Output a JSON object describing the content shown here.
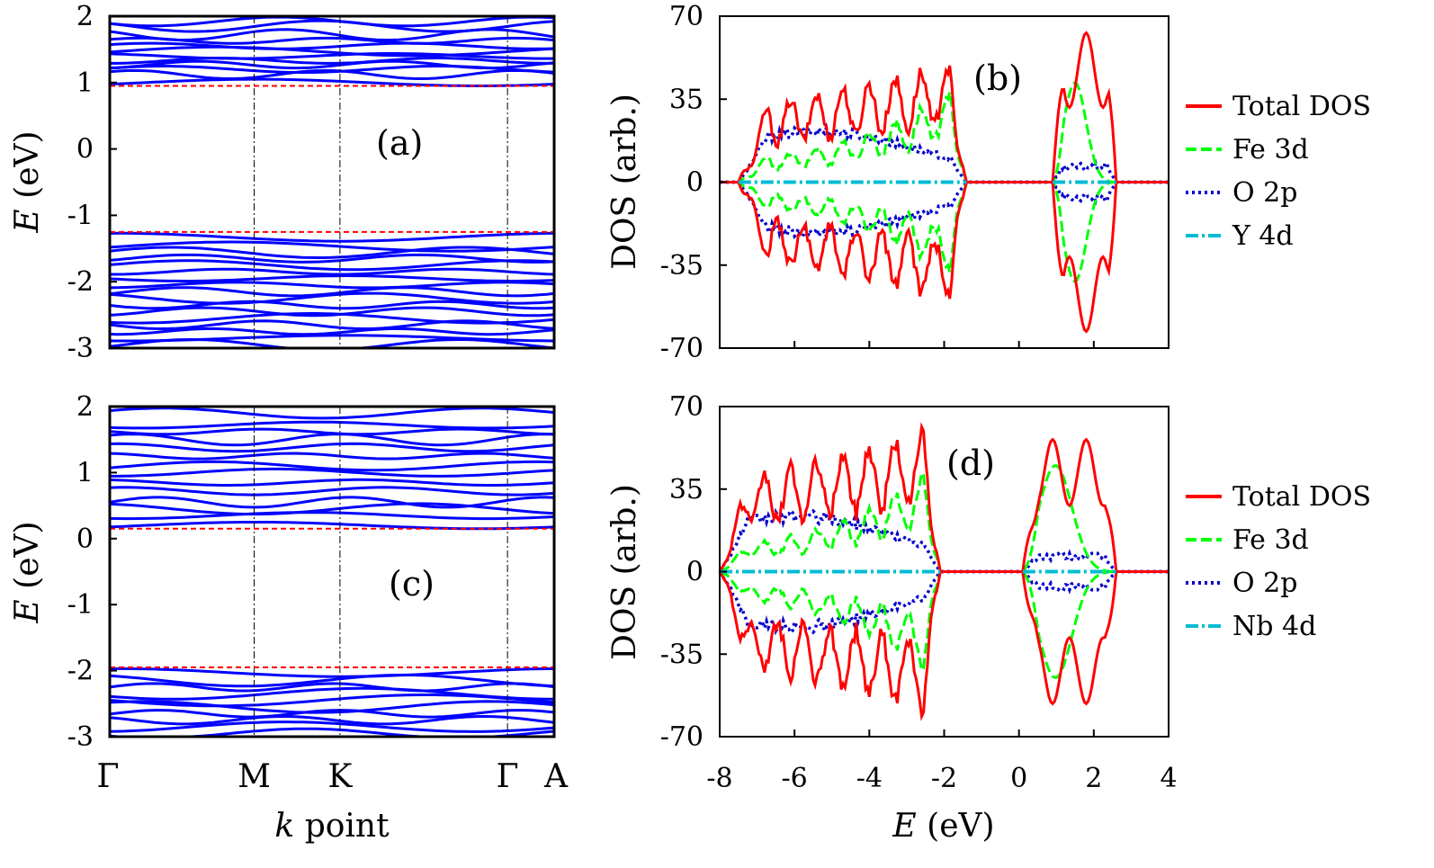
{
  "colors": {
    "bands": "#0000ff",
    "gap_edge": "#ff0000",
    "sym_lines": "#000000",
    "total_dos": "#ff0000",
    "fe_3d": "#00ff00",
    "o_2p": "#0000cc",
    "dopant_4d": "#00bcd4"
  },
  "chart_data": [
    {
      "id": "a",
      "type": "line",
      "label": "(a)",
      "ylabel_italic": "E",
      "ylabel_rest": "(eV)",
      "ylim": [
        -3,
        2
      ],
      "yticks": [
        "2",
        "1",
        "0",
        "-1",
        "-2",
        "-3"
      ],
      "kpoints": [
        "Γ",
        "M",
        "K",
        "Γ",
        "A"
      ],
      "cbm": 0.95,
      "vbm": -1.25,
      "cb_levels": [
        1.0,
        1.12,
        1.2,
        1.27,
        1.33,
        1.4,
        1.47,
        1.55,
        1.63,
        1.72,
        1.85,
        1.92
      ],
      "vb_levels": [
        -1.38,
        -1.47,
        -1.56,
        -1.65,
        -1.75,
        -1.85,
        -1.95,
        -2.05,
        -2.15,
        -2.25,
        -2.35,
        -2.45,
        -2.55,
        -2.65,
        -2.75,
        -2.85,
        -2.95
      ],
      "grid": false
    },
    {
      "id": "b",
      "type": "line",
      "label": "(b)",
      "ylabel": "DOS (arb.)",
      "xlim": [
        -8,
        4
      ],
      "ylim": [
        -70,
        70
      ],
      "yticks": [
        "70",
        "35",
        "0",
        "-35",
        "-70"
      ],
      "valence_band": [
        -7.5,
        -1.4
      ],
      "conduction_band": [
        0.9,
        2.6
      ],
      "peaks": {
        "total": 50,
        "fe_3d": 42,
        "o_2p": 30,
        "total_cb": 63
      },
      "legend": [
        "Total DOS",
        "Fe 3d",
        "O 2p",
        "Y 4d"
      ],
      "grid": false
    },
    {
      "id": "c",
      "type": "line",
      "label": "(c)",
      "ylabel_italic": "E",
      "ylabel_rest": "(eV)",
      "xlabel_italic": "k",
      "xlabel_rest": "point",
      "ylim": [
        -3,
        2
      ],
      "yticks": [
        "2",
        "1",
        "0",
        "-1",
        "-2",
        "-3"
      ],
      "kpoints": [
        "Γ",
        "M",
        "K",
        "Γ",
        "A"
      ],
      "cbm": 0.15,
      "vbm": -1.95,
      "cb_levels": [
        0.25,
        0.35,
        0.45,
        0.55,
        0.72,
        0.85,
        1.0,
        1.1,
        1.25,
        1.38,
        1.5,
        1.62,
        1.72,
        1.9
      ],
      "vb_levels": [
        -2.05,
        -2.15,
        -2.25,
        -2.35,
        -2.45,
        -2.55,
        -2.65,
        -2.75,
        -2.85,
        -2.95
      ],
      "grid": false
    },
    {
      "id": "d",
      "type": "line",
      "label": "(d)",
      "ylabel": "DOS (arb.)",
      "xlabel_italic": "E",
      "xlabel_rest": "(eV)",
      "xlim": [
        -8,
        4
      ],
      "ylim": [
        -70,
        70
      ],
      "xticks": [
        "-8",
        "-6",
        "-4",
        "-2",
        "0",
        "2",
        "4"
      ],
      "yticks": [
        "70",
        "35",
        "0",
        "-35",
        "-70"
      ],
      "valence_band": [
        -8.0,
        -2.1
      ],
      "conduction_band": [
        0.1,
        2.6
      ],
      "peaks": {
        "total": 60,
        "fe_3d": 45,
        "o_2p": 33,
        "total_cb": 56
      },
      "legend": [
        "Total DOS",
        "Fe 3d",
        "O 2p",
        "Nb 4d"
      ],
      "grid": false
    }
  ]
}
